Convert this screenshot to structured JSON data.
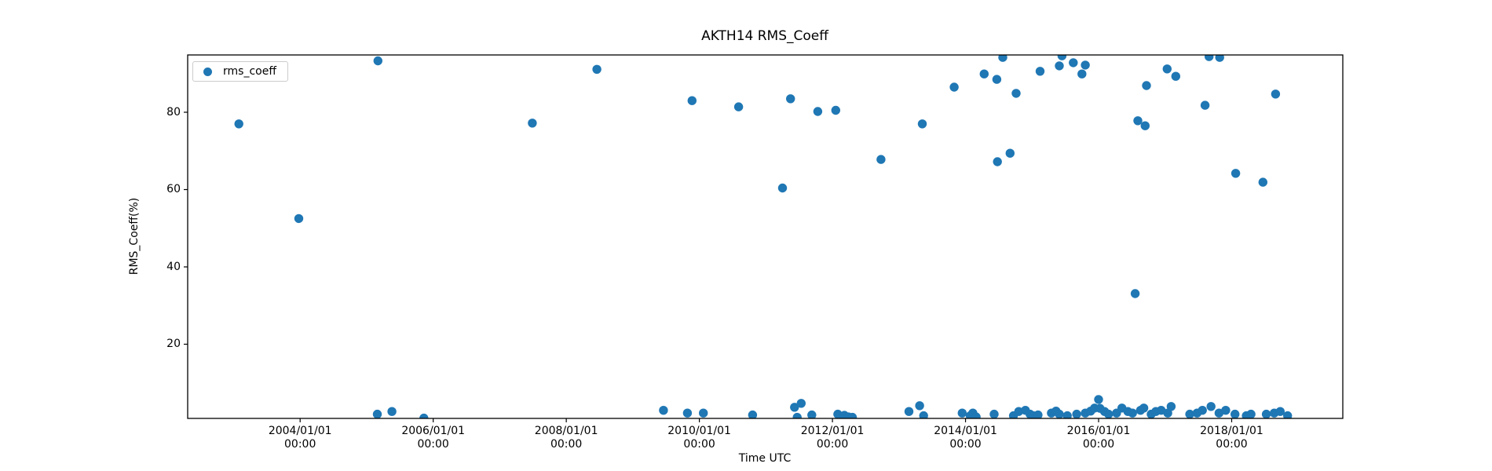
{
  "figure": {
    "title": "AKTH14 RMS_Coeff",
    "xlabel": "Time UTC",
    "ylabel": "RMS_Coeff(%)",
    "legend": {
      "label": "rms_coeff",
      "marker_color": "#1f77b4"
    }
  },
  "chart_data": {
    "type": "scatter",
    "title": "AKTH14 RMS_Coeff",
    "xlabel": "Time UTC",
    "ylabel": "RMS_Coeff(%)",
    "grid": false,
    "legend_position": "upper-left",
    "legend_entries": [
      "rms_coeff"
    ],
    "marker": "circle",
    "marker_color": "#1f77b4",
    "x_unit": "decimal_year",
    "xlim": [
      2002.31,
      2019.67
    ],
    "ylim": [
      0.81,
      94.82
    ],
    "yticks": [
      20,
      40,
      60,
      80
    ],
    "xticks": [
      {
        "value": 2004,
        "line1": "2004/01/01",
        "line2": "00:00"
      },
      {
        "value": 2006,
        "line1": "2006/01/01",
        "line2": "00:00"
      },
      {
        "value": 2008,
        "line1": "2008/01/01",
        "line2": "00:00"
      },
      {
        "value": 2010,
        "line1": "2010/01/01",
        "line2": "00:00"
      },
      {
        "value": 2012,
        "line1": "2012/01/01",
        "line2": "00:00"
      },
      {
        "value": 2014,
        "line1": "2014/01/01",
        "line2": "00:00"
      },
      {
        "value": 2016,
        "line1": "2016/01/01",
        "line2": "00:00"
      },
      {
        "value": 2018,
        "line1": "2018/01/01",
        "line2": "00:00"
      }
    ],
    "series": [
      {
        "name": "rms_coeff",
        "color": "#1f77b4",
        "points": [
          [
            2003.08,
            77.0
          ],
          [
            2003.98,
            52.5
          ],
          [
            2005.17,
            93.3
          ],
          [
            2007.49,
            77.2
          ],
          [
            2008.46,
            91.1
          ],
          [
            2009.89,
            83.0
          ],
          [
            2010.59,
            81.4
          ],
          [
            2011.25,
            60.4
          ],
          [
            2011.37,
            83.5
          ],
          [
            2011.78,
            80.2
          ],
          [
            2012.05,
            80.5
          ],
          [
            2012.73,
            67.8
          ],
          [
            2013.35,
            77.0
          ],
          [
            2013.83,
            86.5
          ],
          [
            2014.28,
            89.9
          ],
          [
            2014.47,
            88.5
          ],
          [
            2014.48,
            67.2
          ],
          [
            2014.56,
            94.2
          ],
          [
            2014.67,
            69.4
          ],
          [
            2014.76,
            84.9
          ],
          [
            2015.12,
            90.6
          ],
          [
            2015.41,
            92.0
          ],
          [
            2015.45,
            94.6
          ],
          [
            2015.62,
            92.8
          ],
          [
            2015.75,
            89.9
          ],
          [
            2015.8,
            92.2
          ],
          [
            2016.55,
            33.1
          ],
          [
            2016.59,
            77.8
          ],
          [
            2016.7,
            76.5
          ],
          [
            2016.72,
            86.9
          ],
          [
            2017.03,
            91.2
          ],
          [
            2017.16,
            89.3
          ],
          [
            2017.6,
            81.8
          ],
          [
            2017.66,
            94.4
          ],
          [
            2017.82,
            94.2
          ],
          [
            2018.06,
            64.2
          ],
          [
            2018.47,
            61.9
          ],
          [
            2018.66,
            84.7
          ],
          [
            2005.16,
            1.9
          ],
          [
            2005.38,
            2.6
          ],
          [
            2005.86,
            0.9
          ],
          [
            2009.46,
            2.9
          ],
          [
            2009.82,
            2.2
          ],
          [
            2010.06,
            2.2
          ],
          [
            2010.8,
            1.7
          ],
          [
            2011.43,
            3.7
          ],
          [
            2011.47,
            1.1
          ],
          [
            2011.53,
            4.7
          ],
          [
            2011.69,
            1.7
          ],
          [
            2012.08,
            1.9
          ],
          [
            2012.13,
            1.3
          ],
          [
            2012.18,
            1.6
          ],
          [
            2012.24,
            1.2
          ],
          [
            2012.3,
            1.1
          ],
          [
            2013.15,
            2.6
          ],
          [
            2013.31,
            4.1
          ],
          [
            2013.37,
            1.5
          ],
          [
            2013.95,
            2.2
          ],
          [
            2014.07,
            1.5
          ],
          [
            2014.11,
            2.2
          ],
          [
            2014.16,
            1.2
          ],
          [
            2014.43,
            1.9
          ],
          [
            2014.72,
            1.5
          ],
          [
            2014.8,
            2.6
          ],
          [
            2014.9,
            2.9
          ],
          [
            2014.97,
            1.9
          ],
          [
            2015.02,
            1.5
          ],
          [
            2015.09,
            1.7
          ],
          [
            2015.29,
            2.2
          ],
          [
            2015.36,
            2.7
          ],
          [
            2015.41,
            1.9
          ],
          [
            2015.53,
            1.5
          ],
          [
            2015.67,
            1.9
          ],
          [
            2015.8,
            2.2
          ],
          [
            2015.88,
            2.7
          ],
          [
            2015.94,
            3.5
          ],
          [
            2016.0,
            5.7
          ],
          [
            2016.02,
            3.4
          ],
          [
            2016.09,
            2.6
          ],
          [
            2016.15,
            1.9
          ],
          [
            2016.27,
            2.2
          ],
          [
            2016.35,
            3.5
          ],
          [
            2016.44,
            2.6
          ],
          [
            2016.51,
            2.2
          ],
          [
            2016.63,
            2.9
          ],
          [
            2016.68,
            3.5
          ],
          [
            2016.79,
            1.9
          ],
          [
            2016.86,
            2.6
          ],
          [
            2016.94,
            2.9
          ],
          [
            2017.04,
            2.2
          ],
          [
            2017.09,
            3.9
          ],
          [
            2017.37,
            1.9
          ],
          [
            2017.48,
            2.2
          ],
          [
            2017.56,
            2.9
          ],
          [
            2017.69,
            3.9
          ],
          [
            2017.81,
            2.2
          ],
          [
            2017.91,
            2.9
          ],
          [
            2018.05,
            1.9
          ],
          [
            2018.22,
            1.5
          ],
          [
            2018.29,
            1.9
          ],
          [
            2018.52,
            1.9
          ],
          [
            2018.64,
            2.2
          ],
          [
            2018.73,
            2.6
          ],
          [
            2018.84,
            1.5
          ]
        ]
      }
    ]
  }
}
